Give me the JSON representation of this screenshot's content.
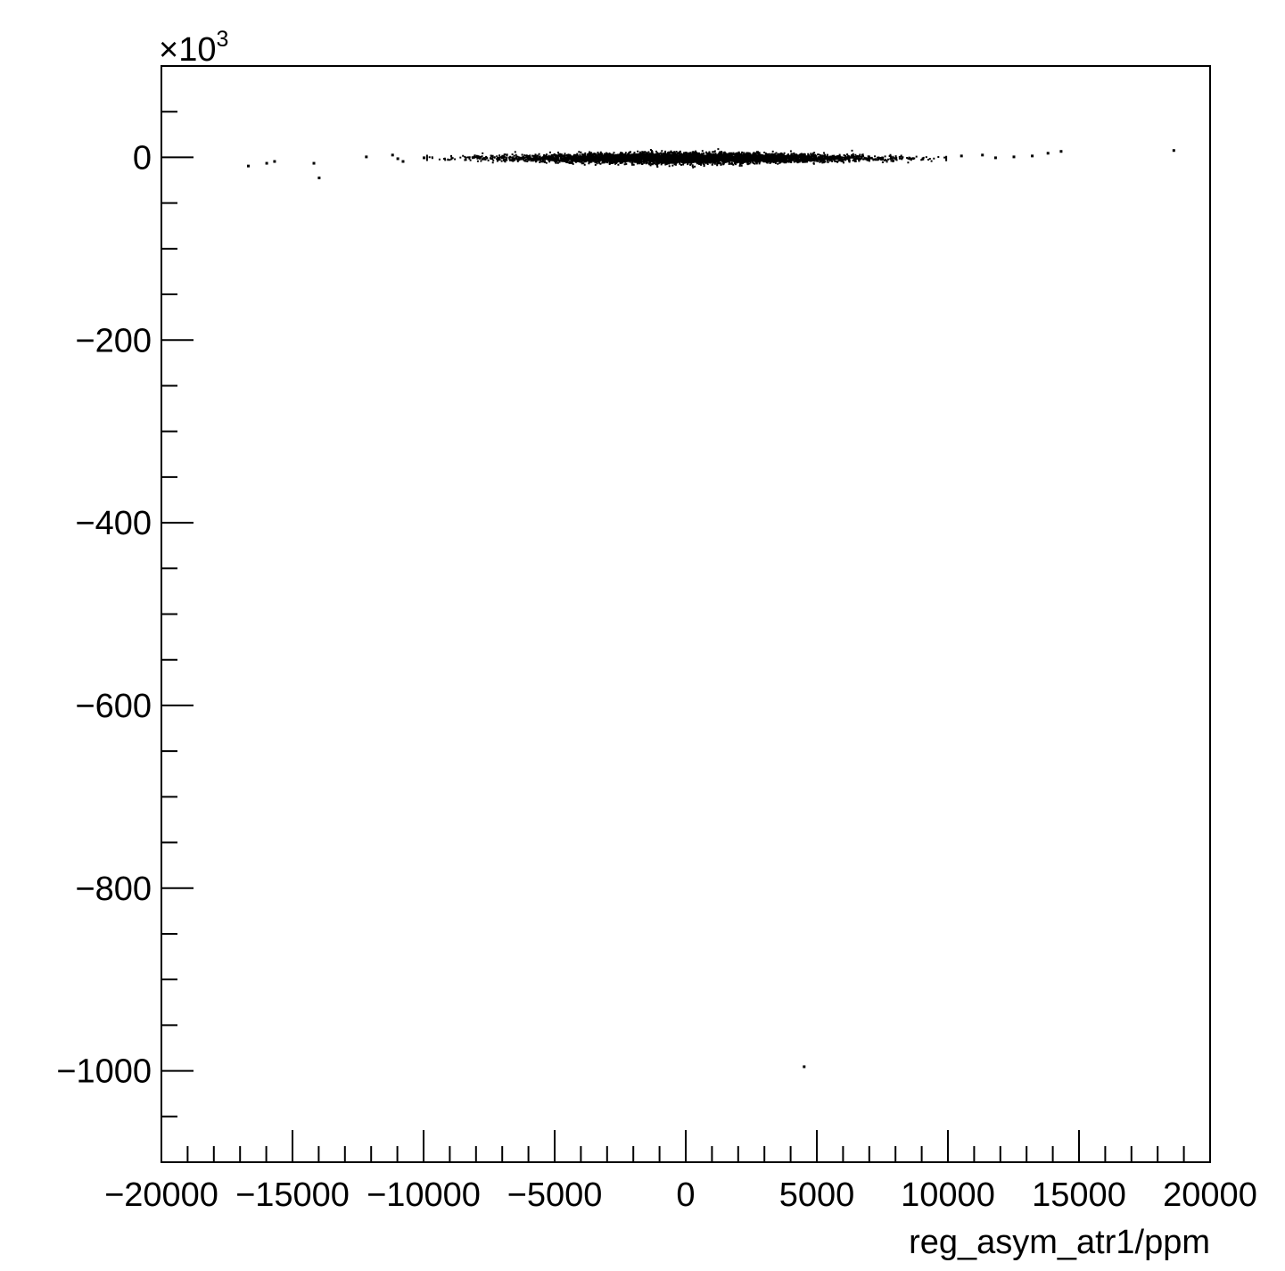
{
  "chart_data": {
    "type": "scatter",
    "title": "",
    "xlabel": "reg_asym_atr1/ppm",
    "ylabel": "",
    "y_multiplier_label": "×10",
    "y_multiplier_exponent": "3",
    "xlim": [
      -20000,
      20000
    ],
    "ylim": [
      -1100,
      100
    ],
    "x_ticks": [
      -20000,
      -15000,
      -10000,
      -5000,
      0,
      5000,
      10000,
      15000,
      20000
    ],
    "x_tick_labels": [
      "−20000",
      "−15000",
      "−10000",
      "−5000",
      "0",
      "5000",
      "10000",
      "15000",
      "20000"
    ],
    "y_ticks": [
      -1000,
      -800,
      -600,
      -400,
      -200,
      0
    ],
    "y_tick_labels": [
      "−1000",
      "−800",
      "−600",
      "−400",
      "−200",
      "0"
    ],
    "grid": false,
    "marker_color": "#000000",
    "core_cluster": {
      "x_center": 0,
      "x_sigma": 3300,
      "y_center": 0,
      "y_sigma": 3,
      "n_points": 9000
    },
    "outliers": [
      {
        "x": -16700,
        "y": -9
      },
      {
        "x": -16000,
        "y": -6
      },
      {
        "x": -15700,
        "y": -4
      },
      {
        "x": -14200,
        "y": -6
      },
      {
        "x": -14000,
        "y": -22
      },
      {
        "x": -12200,
        "y": 1
      },
      {
        "x": -11200,
        "y": 3
      },
      {
        "x": -11000,
        "y": -1
      },
      {
        "x": -10800,
        "y": -4
      },
      {
        "x": -10000,
        "y": 0
      },
      {
        "x": 10500,
        "y": 2
      },
      {
        "x": 11300,
        "y": 3
      },
      {
        "x": 11800,
        "y": 0
      },
      {
        "x": 12500,
        "y": 1
      },
      {
        "x": 13200,
        "y": 2
      },
      {
        "x": 13800,
        "y": 5
      },
      {
        "x": 14300,
        "y": 7
      },
      {
        "x": 18600,
        "y": 8
      },
      {
        "x": 4500,
        "y": -995
      }
    ]
  }
}
